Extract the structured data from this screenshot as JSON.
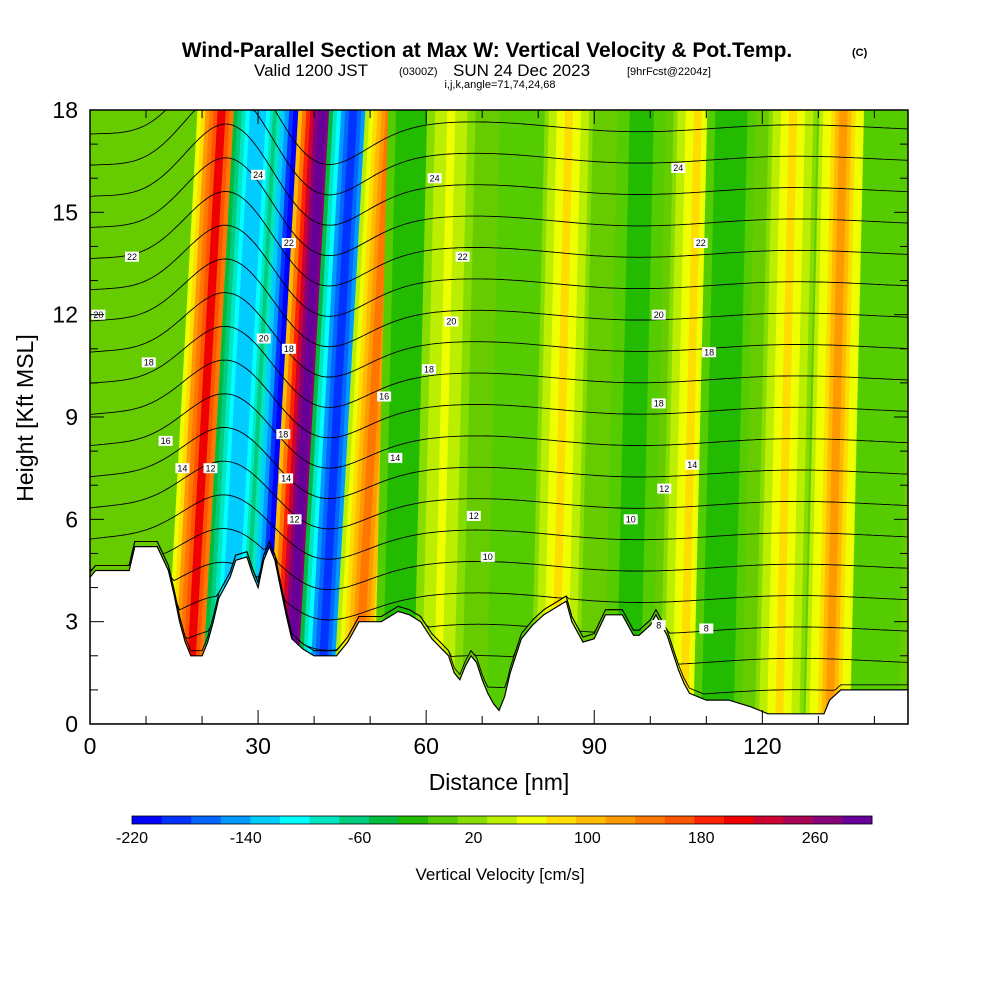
{
  "header": {
    "title": "Wind-Parallel Section at Max W: Vertical Velocity & Pot.Temp.",
    "copyright_mark": "(C)",
    "valid_prefix": "Valid 1200 JST",
    "valid_z": "(0300Z)",
    "valid_date": "SUN 24 Dec 2023",
    "forecast": "[9hrFcst@2204z]",
    "indices": "i,j,k,angle=71,74,24,68"
  },
  "chart_data": {
    "type": "heatmap",
    "title": "Wind-Parallel Section at Max W: Vertical Velocity & Pot.Temp.",
    "xlabel": "Distance [nm]",
    "ylabel": "Height [Kft MSL]",
    "xlim": [
      0,
      146
    ],
    "ylim": [
      0,
      18
    ],
    "xticks": [
      0,
      30,
      60,
      90,
      120
    ],
    "yticks": [
      0,
      3,
      6,
      9,
      12,
      15,
      18
    ],
    "colorbar": {
      "label": "Vertical Velocity [cm/s]",
      "min": -220,
      "max": 300,
      "step": 20,
      "tick_values": [
        -220,
        -140,
        -60,
        20,
        100,
        180,
        260
      ],
      "colors": [
        "#0000ff",
        "#0033ff",
        "#0066ff",
        "#0099ff",
        "#00ccff",
        "#00ffff",
        "#00e6c0",
        "#00cc80",
        "#00bb40",
        "#22bb00",
        "#55cc00",
        "#88dd00",
        "#bbee00",
        "#eeff00",
        "#ffdd00",
        "#ffbb00",
        "#ff9900",
        "#ff7700",
        "#ff5500",
        "#ff2200",
        "#ee0000",
        "#cc0033",
        "#aa0055",
        "#880077",
        "#660099"
      ]
    },
    "terrain_kft": [
      [
        0,
        4.3
      ],
      [
        1,
        4.5
      ],
      [
        4,
        4.5
      ],
      [
        7,
        4.5
      ],
      [
        8,
        5.2
      ],
      [
        12,
        5.2
      ],
      [
        14,
        4.5
      ],
      [
        15,
        3.8
      ],
      [
        16,
        3.0
      ],
      [
        17,
        2.4
      ],
      [
        18,
        2.0
      ],
      [
        20,
        2.0
      ],
      [
        21,
        2.4
      ],
      [
        22,
        3.0
      ],
      [
        23,
        3.7
      ],
      [
        25,
        4.3
      ],
      [
        26,
        4.8
      ],
      [
        28,
        4.9
      ],
      [
        29,
        4.4
      ],
      [
        30,
        4.0
      ],
      [
        31,
        4.8
      ],
      [
        32,
        5.2
      ],
      [
        33,
        4.8
      ],
      [
        34,
        4.0
      ],
      [
        35,
        3.2
      ],
      [
        36,
        2.5
      ],
      [
        38,
        2.2
      ],
      [
        40,
        2.0
      ],
      [
        44,
        2.0
      ],
      [
        46,
        2.4
      ],
      [
        48,
        3.0
      ],
      [
        52,
        3.0
      ],
      [
        55,
        3.3
      ],
      [
        57,
        3.2
      ],
      [
        59,
        3.0
      ],
      [
        61,
        2.5
      ],
      [
        64,
        2.0
      ],
      [
        65,
        1.5
      ],
      [
        66,
        1.3
      ],
      [
        67,
        1.7
      ],
      [
        68,
        2.0
      ],
      [
        69,
        1.8
      ],
      [
        70,
        1.3
      ],
      [
        71,
        0.9
      ],
      [
        72,
        0.6
      ],
      [
        73,
        0.4
      ],
      [
        74,
        0.8
      ],
      [
        75,
        1.5
      ],
      [
        76,
        2.0
      ],
      [
        77,
        2.5
      ],
      [
        79,
        2.9
      ],
      [
        81,
        3.2
      ],
      [
        83,
        3.4
      ],
      [
        85,
        3.6
      ],
      [
        86,
        3.0
      ],
      [
        88,
        2.4
      ],
      [
        90,
        2.5
      ],
      [
        92,
        3.2
      ],
      [
        95,
        3.2
      ],
      [
        97,
        2.6
      ],
      [
        98,
        2.6
      ],
      [
        100,
        2.9
      ],
      [
        101,
        3.2
      ],
      [
        103,
        2.6
      ],
      [
        104,
        2.1
      ],
      [
        105,
        1.6
      ],
      [
        106,
        1.2
      ],
      [
        107,
        0.9
      ],
      [
        110,
        0.7
      ],
      [
        114,
        0.7
      ],
      [
        118,
        0.5
      ],
      [
        121,
        0.3
      ],
      [
        131,
        0.3
      ],
      [
        132,
        0.7
      ],
      [
        134,
        1.0
      ],
      [
        146,
        1.0
      ]
    ],
    "w_bands": [
      {
        "x": 17.5,
        "w_cms": 180
      },
      {
        "x": 24.0,
        "w_cms": -140
      },
      {
        "x": 31.0,
        "w_cms": -220
      },
      {
        "x": 35.5,
        "w_cms": 280
      },
      {
        "x": 41.0,
        "w_cms": -200
      },
      {
        "x": 47.5,
        "w_cms": 120
      },
      {
        "x": 55.0,
        "w_cms": -40
      },
      {
        "x": 62.0,
        "w_cms": 40
      },
      {
        "x": 75.0,
        "w_cms": -20
      },
      {
        "x": 83.0,
        "w_cms": 60
      },
      {
        "x": 96.0,
        "w_cms": -30
      },
      {
        "x": 106.0,
        "w_cms": 60
      },
      {
        "x": 112.0,
        "w_cms": -40
      },
      {
        "x": 123.0,
        "w_cms": 60
      },
      {
        "x": 132.0,
        "w_cms": 100
      },
      {
        "x": 140.0,
        "w_cms": -20
      }
    ],
    "theta_levels": [
      8,
      9,
      10,
      11,
      12,
      13,
      14,
      15,
      16,
      17,
      18,
      19,
      20,
      21,
      22,
      23,
      24,
      25,
      26
    ],
    "theta_labels": [
      {
        "text": "20",
        "x": 1.5,
        "y": 12.0
      },
      {
        "text": "22",
        "x": 7.5,
        "y": 13.7
      },
      {
        "text": "18",
        "x": 10.5,
        "y": 10.6
      },
      {
        "text": "16",
        "x": 13.5,
        "y": 8.3
      },
      {
        "text": "14",
        "x": 16.5,
        "y": 7.5
      },
      {
        "text": "12",
        "x": 21.5,
        "y": 7.5
      },
      {
        "text": "24",
        "x": 30.0,
        "y": 16.1
      },
      {
        "text": "22",
        "x": 35.5,
        "y": 14.1
      },
      {
        "text": "20",
        "x": 31.0,
        "y": 11.3
      },
      {
        "text": "18",
        "x": 35.5,
        "y": 11.0
      },
      {
        "text": "18",
        "x": 34.5,
        "y": 8.5
      },
      {
        "text": "14",
        "x": 35.0,
        "y": 7.2
      },
      {
        "text": "12",
        "x": 36.5,
        "y": 6.0
      },
      {
        "text": "24",
        "x": 61.5,
        "y": 16.0
      },
      {
        "text": "22",
        "x": 66.5,
        "y": 13.7
      },
      {
        "text": "20",
        "x": 64.5,
        "y": 11.8
      },
      {
        "text": "18",
        "x": 60.5,
        "y": 10.4
      },
      {
        "text": "16",
        "x": 52.5,
        "y": 9.6
      },
      {
        "text": "14",
        "x": 54.5,
        "y": 7.8
      },
      {
        "text": "12",
        "x": 68.5,
        "y": 6.1
      },
      {
        "text": "10",
        "x": 71.0,
        "y": 4.9
      },
      {
        "text": "24",
        "x": 105.0,
        "y": 16.3
      },
      {
        "text": "22",
        "x": 109.0,
        "y": 14.1
      },
      {
        "text": "20",
        "x": 101.5,
        "y": 12.0
      },
      {
        "text": "18",
        "x": 110.5,
        "y": 10.9
      },
      {
        "text": "18",
        "x": 101.5,
        "y": 9.4
      },
      {
        "text": "14",
        "x": 107.5,
        "y": 7.6
      },
      {
        "text": "12",
        "x": 102.5,
        "y": 6.9
      },
      {
        "text": "10",
        "x": 96.5,
        "y": 6.0
      },
      {
        "text": "8",
        "x": 101.5,
        "y": 2.9
      },
      {
        "text": "8",
        "x": 110.0,
        "y": 2.8
      }
    ]
  }
}
